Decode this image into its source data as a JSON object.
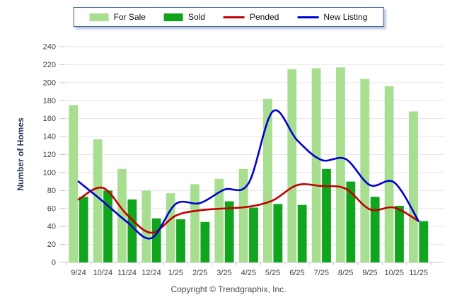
{
  "legend": {
    "items": [
      {
        "label": "For Sale",
        "swatch": "bar",
        "color": "#a8de90"
      },
      {
        "label": "Sold",
        "swatch": "bar",
        "color": "#10a51d"
      },
      {
        "label": "Pended",
        "swatch": "line",
        "color": "#c00000"
      },
      {
        "label": "New Listing",
        "swatch": "line",
        "color": "#0000d0"
      }
    ]
  },
  "chart_data": {
    "type": "bar",
    "subtype": "grouped bars with smoothed overlay lines",
    "categories": [
      "9/24",
      "10/24",
      "11/24",
      "12/24",
      "1/25",
      "2/25",
      "3/25",
      "4/25",
      "5/25",
      "6/25",
      "7/25",
      "8/25",
      "9/25",
      "10/25",
      "11/25"
    ],
    "series": [
      {
        "name": "For Sale",
        "type": "bar",
        "color": "#a8de90",
        "values": [
          175,
          137,
          104,
          80,
          77,
          87,
          93,
          104,
          182,
          215,
          216,
          217,
          204,
          196,
          168
        ]
      },
      {
        "name": "Sold",
        "type": "bar",
        "color": "#10a51d",
        "values": [
          73,
          80,
          70,
          49,
          48,
          45,
          68,
          61,
          65,
          64,
          104,
          90,
          73,
          63,
          46
        ]
      },
      {
        "name": "Pended",
        "type": "line",
        "color": "#c00000",
        "values": [
          70,
          83,
          53,
          33,
          52,
          58,
          60,
          62,
          69,
          86,
          85,
          82,
          59,
          61,
          46
        ]
      },
      {
        "name": "New Listing",
        "type": "line",
        "color": "#0000d0",
        "values": [
          90,
          68,
          45,
          27,
          65,
          66,
          81,
          88,
          168,
          136,
          114,
          115,
          86,
          89,
          46
        ]
      }
    ],
    "xlabel": "",
    "ylabel": "Number of Homes",
    "ylim": [
      0,
      240
    ],
    "ytick_step": 20,
    "grid": "horizontal",
    "legend_position": "top-center"
  },
  "footer": {
    "copyright": "Copyright © Trendgraphix, Inc."
  },
  "style": {
    "gridline_color": "#e7e7e7",
    "axis_color": "#c9c9c9",
    "tick_text_color": "#3f3f3f",
    "axis_title_color": "#24355c"
  }
}
